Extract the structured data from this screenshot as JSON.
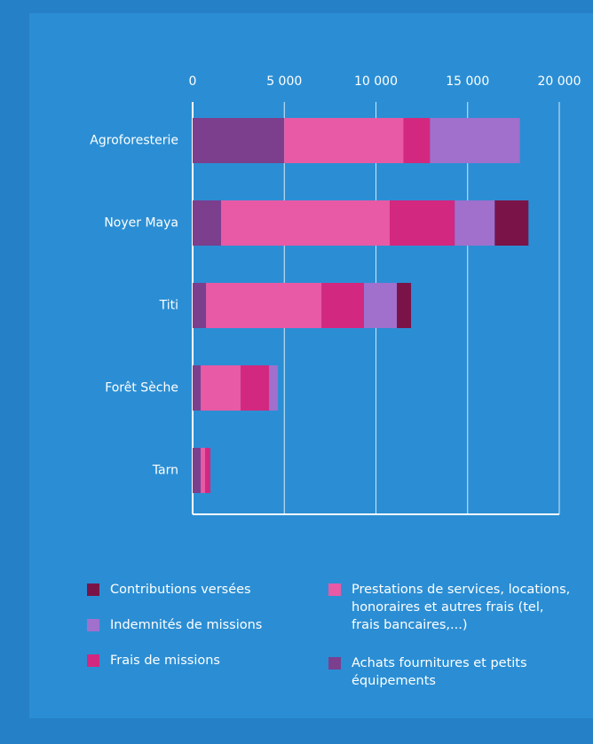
{
  "chart_data": {
    "type": "bar",
    "orientation": "horizontal",
    "stacked": true,
    "categories": [
      "Agroforesterie",
      "Noyer Maya",
      "Titi",
      "Forêt Sèche",
      "Tarn"
    ],
    "series": [
      {
        "name": "Achats fournitures et petits équipements",
        "color": "#7b3f8e",
        "values": [
          5000,
          1550,
          730,
          440,
          440
        ]
      },
      {
        "name": "Prestations de services, locations, honoraires et autres frais (tel, frais bancaires,...)",
        "color": "#e85aa5",
        "values": [
          6500,
          9200,
          6300,
          2180,
          240
        ]
      },
      {
        "name": "Frais de missions",
        "color": "#d3287f",
        "values": [
          1450,
          3550,
          2320,
          1550,
          290
        ]
      },
      {
        "name": "Indemnités de missions",
        "color": "#a070cc",
        "values": [
          4900,
          2180,
          1790,
          480,
          0
        ]
      },
      {
        "name": "Contributions versées",
        "color": "#7a1448",
        "values": [
          0,
          1840,
          775,
          0,
          0
        ]
      }
    ],
    "xlim": [
      0,
      20000
    ],
    "xticks": [
      0,
      {
        "value": 5000,
        "label": "5 000"
      },
      {
        "value": 10000,
        "label": "10 000"
      },
      {
        "value": 15000,
        "label": "15 000"
      },
      {
        "value": 20000,
        "label": "20 000"
      }
    ],
    "grid": true
  }
}
